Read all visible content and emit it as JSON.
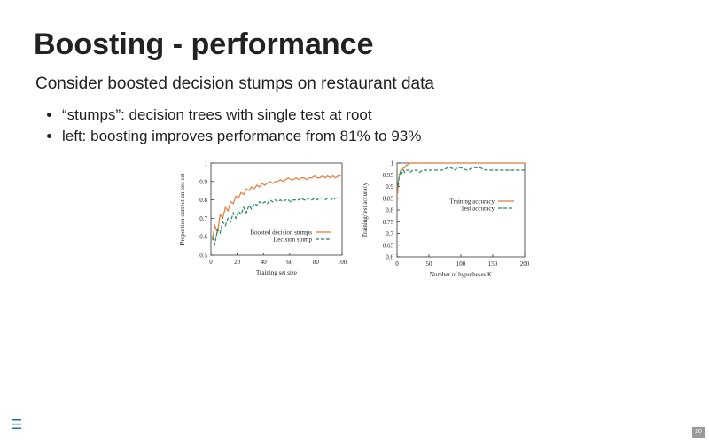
{
  "slide": {
    "title": "Boosting - performance",
    "subtitle": "Consider boosted decision stumps on restaurant data",
    "bullets": [
      "“stumps”: decision trees with single test at root",
      "left: boosting improves performance from 81% to 93%"
    ],
    "menu_icon": "hamburger-menu-icon",
    "page_number": "20"
  },
  "colors": {
    "boosted": "#e07b39",
    "stump": "#1f8a62",
    "axis": "#333333",
    "text": "#222222",
    "menu": "#2b6cb0"
  },
  "chart_data": [
    {
      "type": "line",
      "xlabel": "Training set size",
      "ylabel": "Proportion correct on test set",
      "xlim": [
        0,
        100
      ],
      "ylim": [
        0.5,
        1.0
      ],
      "xticks": [
        "0",
        "20",
        "40",
        "60",
        "80",
        "100"
      ],
      "yticks": [
        "0.5",
        "0.6",
        "0.7",
        "0.8",
        "0.9",
        "1"
      ],
      "legend_position": "bottom-right",
      "series": [
        {
          "name": "Boosted decision stumps",
          "style": "solid",
          "x": [
            1,
            3,
            5,
            7,
            9,
            11,
            13,
            15,
            17,
            19,
            21,
            23,
            25,
            27,
            29,
            31,
            33,
            35,
            37,
            39,
            41,
            43,
            45,
            47,
            49,
            51,
            53,
            55,
            57,
            59,
            61,
            63,
            65,
            67,
            69,
            71,
            73,
            75,
            77,
            79,
            81,
            83,
            85,
            87,
            89,
            91,
            93,
            95,
            97,
            99
          ],
          "y": [
            0.58,
            0.66,
            0.62,
            0.72,
            0.7,
            0.76,
            0.74,
            0.79,
            0.78,
            0.82,
            0.81,
            0.84,
            0.83,
            0.86,
            0.85,
            0.87,
            0.86,
            0.88,
            0.87,
            0.89,
            0.88,
            0.89,
            0.9,
            0.89,
            0.9,
            0.9,
            0.91,
            0.9,
            0.91,
            0.92,
            0.91,
            0.91,
            0.92,
            0.91,
            0.92,
            0.92,
            0.91,
            0.92,
            0.92,
            0.93,
            0.92,
            0.92,
            0.93,
            0.92,
            0.93,
            0.92,
            0.93,
            0.92,
            0.93,
            0.93
          ]
        },
        {
          "name": "Decision stump",
          "style": "dashed",
          "x": [
            1,
            3,
            5,
            7,
            9,
            11,
            13,
            15,
            17,
            19,
            21,
            23,
            25,
            27,
            29,
            31,
            33,
            35,
            37,
            39,
            41,
            43,
            45,
            47,
            49,
            51,
            53,
            55,
            57,
            59,
            61,
            63,
            65,
            67,
            69,
            71,
            73,
            75,
            77,
            79,
            81,
            83,
            85,
            87,
            89,
            91,
            93,
            95,
            97,
            99
          ],
          "y": [
            0.6,
            0.56,
            0.64,
            0.62,
            0.68,
            0.66,
            0.7,
            0.68,
            0.73,
            0.7,
            0.74,
            0.72,
            0.76,
            0.73,
            0.77,
            0.75,
            0.78,
            0.77,
            0.79,
            0.78,
            0.79,
            0.78,
            0.8,
            0.79,
            0.8,
            0.79,
            0.8,
            0.79,
            0.8,
            0.8,
            0.79,
            0.8,
            0.8,
            0.8,
            0.81,
            0.8,
            0.8,
            0.81,
            0.8,
            0.81,
            0.8,
            0.81,
            0.81,
            0.8,
            0.81,
            0.81,
            0.8,
            0.81,
            0.81,
            0.81
          ]
        }
      ]
    },
    {
      "type": "line",
      "xlabel": "Number of hypotheses K",
      "ylabel": "Training/test accuracy",
      "xlim": [
        0,
        200
      ],
      "ylim": [
        0.6,
        1.0
      ],
      "xticks": [
        "0",
        "50",
        "100",
        "150",
        "200"
      ],
      "yticks": [
        "0.6",
        "0.65",
        "0.7",
        "0.75",
        "0.8",
        "0.85",
        "0.9",
        "0.95",
        "1"
      ],
      "legend_position": "center-right",
      "series": [
        {
          "name": "Training accuracy",
          "style": "solid",
          "x": [
            1,
            2,
            3,
            4,
            5,
            6,
            8,
            10,
            12,
            14,
            16,
            18,
            20,
            25,
            30,
            40,
            60,
            80,
            100,
            130,
            160,
            200
          ],
          "y": [
            0.87,
            0.92,
            0.94,
            0.95,
            0.96,
            0.97,
            0.97,
            0.98,
            0.98,
            0.99,
            0.99,
            1.0,
            1.0,
            1.0,
            1.0,
            1.0,
            1.0,
            1.0,
            1.0,
            1.0,
            1.0,
            1.0
          ]
        },
        {
          "name": "Test accuracy",
          "style": "dashed",
          "x": [
            1,
            2,
            3,
            4,
            5,
            6,
            8,
            10,
            12,
            15,
            18,
            20,
            25,
            30,
            35,
            40,
            50,
            60,
            70,
            80,
            85,
            90,
            95,
            100,
            110,
            120,
            130,
            140,
            150,
            160,
            170,
            180,
            190,
            200
          ],
          "y": [
            0.92,
            0.9,
            0.94,
            0.95,
            0.96,
            0.95,
            0.96,
            0.97,
            0.96,
            0.97,
            0.97,
            0.96,
            0.97,
            0.97,
            0.96,
            0.97,
            0.97,
            0.97,
            0.97,
            0.98,
            0.98,
            0.97,
            0.98,
            0.98,
            0.97,
            0.98,
            0.98,
            0.97,
            0.97,
            0.97,
            0.97,
            0.97,
            0.97,
            0.97
          ]
        }
      ]
    }
  ]
}
